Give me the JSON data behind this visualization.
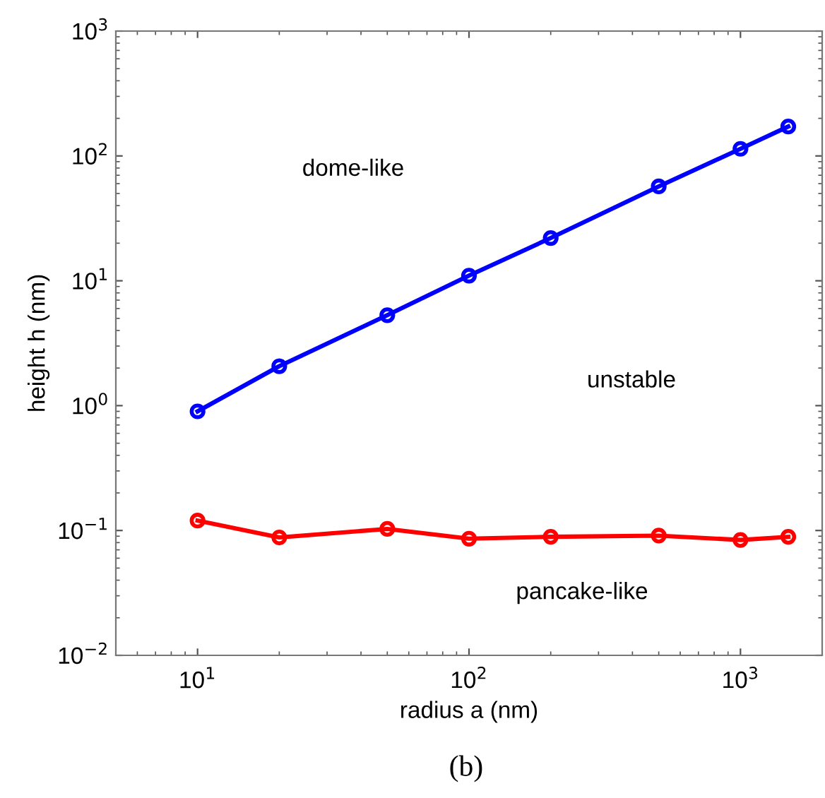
{
  "chart_data": {
    "type": "line",
    "xlabel": "radius a (nm)",
    "ylabel": "height h (nm)",
    "log": "xy",
    "marker": "circle",
    "line_style": "solid",
    "grid": false,
    "legend": false,
    "x": [
      10,
      20,
      50,
      100,
      200,
      500,
      1000,
      1500
    ],
    "series": [
      {
        "color": "#0000ff",
        "values": [
          0.9,
          2.07,
          5.3,
          11,
          22,
          57,
          114,
          172
        ]
      },
      {
        "color": "#ff0000",
        "values": [
          0.12,
          0.088,
          0.103,
          0.086,
          0.089,
          0.091,
          0.084,
          0.089
        ]
      }
    ],
    "xlim": [
      5,
      2000
    ],
    "ylim": [
      0.01,
      1000
    ],
    "xticks": [
      {
        "value": 10,
        "label": "10$^{1}$"
      },
      {
        "value": 100,
        "label": "10$^{2}$"
      },
      {
        "value": 1000,
        "label": "10$^{3}$"
      }
    ],
    "yticks": [
      {
        "value": 0.01,
        "label": "10$^{−2}$"
      },
      {
        "value": 0.1,
        "label": "10$^{−1}$"
      },
      {
        "value": 1,
        "label": "10$^{0}$"
      },
      {
        "value": 10,
        "label": "10$^{1}$"
      },
      {
        "value": 100,
        "label": "10$^{2}$"
      },
      {
        "value": 1000,
        "label": "10$^{3}$"
      }
    ],
    "annotations": [
      "dome-like",
      "unstable",
      "pancake-like",
      "(b)"
    ]
  }
}
